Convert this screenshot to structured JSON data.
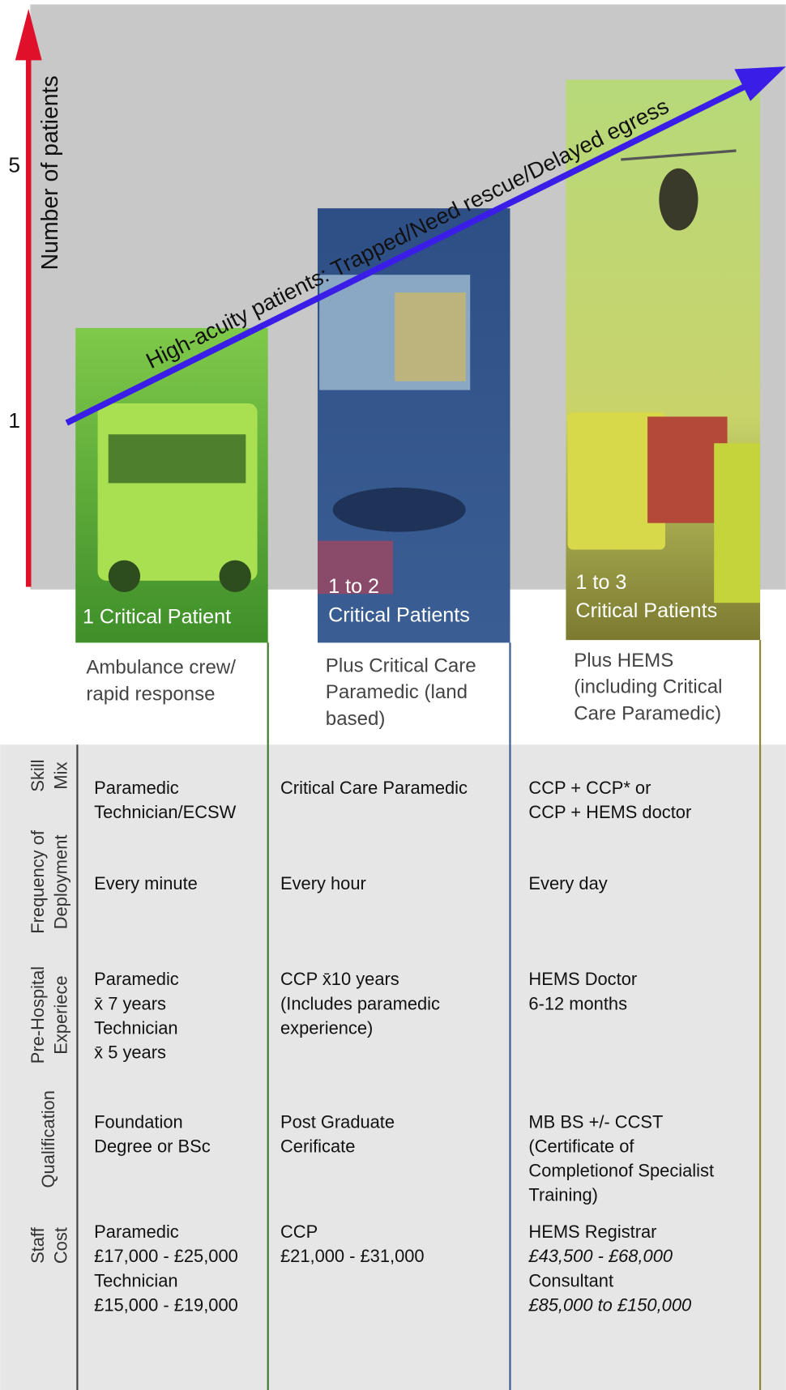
{
  "axis_label": "Number of patients",
  "axis_ticks": [
    "5",
    "1"
  ],
  "trend_label": "High-acuity patients: Trapped/Need rescue/Delayed egress",
  "columns": [
    {
      "header": [
        "1 Critical Patient"
      ],
      "description": [
        "Ambulance crew/",
        "rapid response"
      ]
    },
    {
      "header": [
        "1 to 2",
        "Critical Patients"
      ],
      "description": [
        "Plus Critical Care",
        "Paramedic (land",
        "based)"
      ]
    },
    {
      "header": [
        "1 to 3",
        "Critical Patients"
      ],
      "description": [
        "Plus HEMS",
        "(including Critical",
        "Care Paramedic)"
      ]
    }
  ],
  "rows": [
    {
      "label": [
        "Skill",
        "Mix"
      ],
      "cells": [
        [
          {
            "text": "Paramedic"
          },
          {
            "text": "Technician/ECSW"
          }
        ],
        [
          {
            "text": "Critical Care Paramedic"
          }
        ],
        [
          {
            "text": "CCP + CCP* or"
          },
          {
            "text": "CCP + HEMS doctor"
          }
        ]
      ]
    },
    {
      "label": [
        "Frequency of",
        "Deployment"
      ],
      "cells": [
        [
          {
            "text": "Every minute"
          }
        ],
        [
          {
            "text": "Every hour"
          }
        ],
        [
          {
            "text": "Every day"
          }
        ]
      ]
    },
    {
      "label": [
        "Pre-Hospital",
        "Experiece"
      ],
      "cells": [
        [
          {
            "text": "Paramedic"
          },
          {
            "text": "x̄ 7 years"
          },
          {
            "text": "Technician"
          },
          {
            "text": "x̄ 5 years"
          }
        ],
        [
          {
            "text": "CCP  x̄10 years"
          },
          {
            "text": "(Includes paramedic"
          },
          {
            "text": " experience)"
          }
        ],
        [
          {
            "text": "HEMS Doctor"
          },
          {
            "text": "6-12 months"
          }
        ]
      ]
    },
    {
      "label": [
        "Qualification"
      ],
      "cells": [
        [
          {
            "text": "Foundation"
          },
          {
            "text": "Degree or BSc"
          }
        ],
        [
          {
            "text": "Post Graduate"
          },
          {
            "text": "Cerificate"
          }
        ],
        [
          {
            "text": "MB BS +/- CCST"
          },
          {
            "text": "(Certificate of"
          },
          {
            "text": "Completionof Specialist"
          },
          {
            "text": "Training)"
          }
        ]
      ]
    },
    {
      "label": [
        "Staff",
        "Cost"
      ],
      "cells": [
        [
          {
            "text": "Paramedic"
          },
          {
            "text": "£17,000 - £25,000"
          },
          {
            "text": "Technician"
          },
          {
            "text": "£15,000 - £19,000"
          }
        ],
        [
          {
            "text": "CCP"
          },
          {
            "text": "£21,000 - £31,000"
          }
        ],
        [
          {
            "text": "HEMS Registrar"
          },
          {
            "text": "£43,500 - £68,000",
            "style": "italic"
          },
          {
            "text": "Consultant"
          },
          {
            "text": "£85,000 to £150,000",
            "style": "italic"
          }
        ]
      ]
    }
  ]
}
